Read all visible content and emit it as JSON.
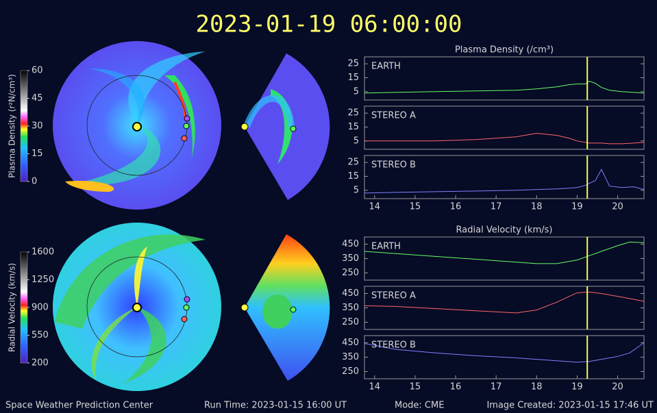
{
  "title": "2023-01-19 06:00:00",
  "footer": {
    "source": "Space Weather Prediction Center",
    "run_time": "Run Time: 2023-01-15 16:00 UT",
    "mode": "Mode: CME",
    "created": "Image Created: 2023-01-15 17:46 UT"
  },
  "colorbars": [
    {
      "label": "Plasma Density (r²N/cm³)",
      "lim": [
        0,
        60
      ],
      "ticks": [
        0,
        15,
        30,
        45,
        60
      ]
    },
    {
      "label": "Radial Velocity (km/s)",
      "lim": [
        200,
        1600
      ],
      "ticks": [
        200,
        550,
        900,
        1250,
        1600
      ]
    }
  ],
  "chart_data": [
    {
      "type": "line",
      "title": "Plasma Density (/cm³)",
      "x": [
        13.75,
        14.5,
        15.5,
        16.5,
        17.5,
        18,
        18.5,
        18.8,
        19,
        19.2,
        19.3,
        19.45,
        19.6,
        19.8,
        20.1,
        20.4,
        20.65
      ],
      "series": [
        {
          "name": "EARTH",
          "color": "#66ff66",
          "values": [
            4,
            4.5,
            5,
            5.5,
            6,
            7,
            8.5,
            10,
            10.5,
            10.5,
            12.5,
            11,
            8,
            6,
            5,
            4.5,
            4
          ]
        }
      ],
      "xlim": [
        13.75,
        20.65
      ],
      "ylim": [
        -1,
        30
      ],
      "yticks": [
        5,
        15,
        25
      ],
      "vline": 19.25
    },
    {
      "type": "line",
      "x": [
        13.75,
        14.5,
        15.5,
        16.5,
        17.5,
        18,
        18.5,
        18.8,
        19,
        19.2,
        19.3,
        19.45,
        19.6,
        19.8,
        20.1,
        20.4,
        20.65
      ],
      "series": [
        {
          "name": "STEREO A",
          "color": "#ff6666",
          "values": [
            5,
            5,
            5,
            6,
            8,
            10.5,
            9,
            7,
            5,
            4,
            3.5,
            3.5,
            3.5,
            3,
            3,
            3.5,
            4
          ]
        }
      ],
      "xlim": [
        13.75,
        20.65
      ],
      "ylim": [
        -1,
        30
      ],
      "yticks": [
        5,
        15,
        25
      ],
      "vline": 19.25
    },
    {
      "type": "line",
      "x": [
        13.75,
        14.5,
        15.5,
        16.5,
        17.5,
        18,
        18.5,
        18.8,
        19,
        19.2,
        19.3,
        19.45,
        19.6,
        19.8,
        20.1,
        20.4,
        20.65
      ],
      "series": [
        {
          "name": "STEREO B",
          "color": "#8080ff",
          "values": [
            3,
            3.5,
            4,
            4.5,
            5,
            5.5,
            6,
            6.5,
            7,
            8.5,
            10,
            12,
            20,
            8,
            7,
            7.5,
            5.5
          ]
        }
      ],
      "xlim": [
        13.75,
        20.65
      ],
      "ylim": [
        -1,
        30
      ],
      "yticks": [
        5,
        15,
        25
      ],
      "xticks": [
        14,
        15,
        16,
        17,
        18,
        19,
        20
      ],
      "vline": 19.25
    },
    {
      "type": "line",
      "title": "Radial Velocity (km/s)",
      "x": [
        13.75,
        14.5,
        15.5,
        16.5,
        17.5,
        18,
        18.5,
        19,
        19.3,
        19.6,
        20,
        20.3,
        20.65
      ],
      "series": [
        {
          "name": "EARTH",
          "color": "#66ff66",
          "values": [
            400,
            385,
            365,
            345,
            325,
            315,
            315,
            340,
            370,
            400,
            440,
            465,
            460
          ]
        }
      ],
      "xlim": [
        13.75,
        20.65
      ],
      "ylim": [
        200,
        500
      ],
      "yticks": [
        250,
        350,
        450
      ],
      "vline": 19.25
    },
    {
      "type": "line",
      "x": [
        13.75,
        14.5,
        15.5,
        16.5,
        17.5,
        18,
        18.5,
        19,
        19.3,
        19.6,
        20,
        20.3,
        20.65
      ],
      "series": [
        {
          "name": "STEREO A",
          "color": "#ff6666",
          "values": [
            365,
            360,
            345,
            330,
            315,
            335,
            390,
            455,
            460,
            450,
            430,
            415,
            395
          ]
        }
      ],
      "xlim": [
        13.75,
        20.65
      ],
      "ylim": [
        200,
        500
      ],
      "yticks": [
        250,
        350,
        450
      ],
      "vline": 19.25
    },
    {
      "type": "line",
      "x": [
        13.75,
        14.5,
        15.5,
        16.5,
        17.5,
        18,
        18.5,
        19,
        19.3,
        19.6,
        20,
        20.3,
        20.65
      ],
      "series": [
        {
          "name": "STEREO B",
          "color": "#8080ff",
          "values": [
            445,
            405,
            380,
            360,
            345,
            335,
            325,
            315,
            320,
            335,
            355,
            380,
            450
          ]
        }
      ],
      "xlim": [
        13.75,
        20.65
      ],
      "ylim": [
        200,
        500
      ],
      "yticks": [
        250,
        350,
        450
      ],
      "xticks": [
        14,
        15,
        16,
        17,
        18,
        19,
        20
      ],
      "vline": 19.25
    }
  ]
}
